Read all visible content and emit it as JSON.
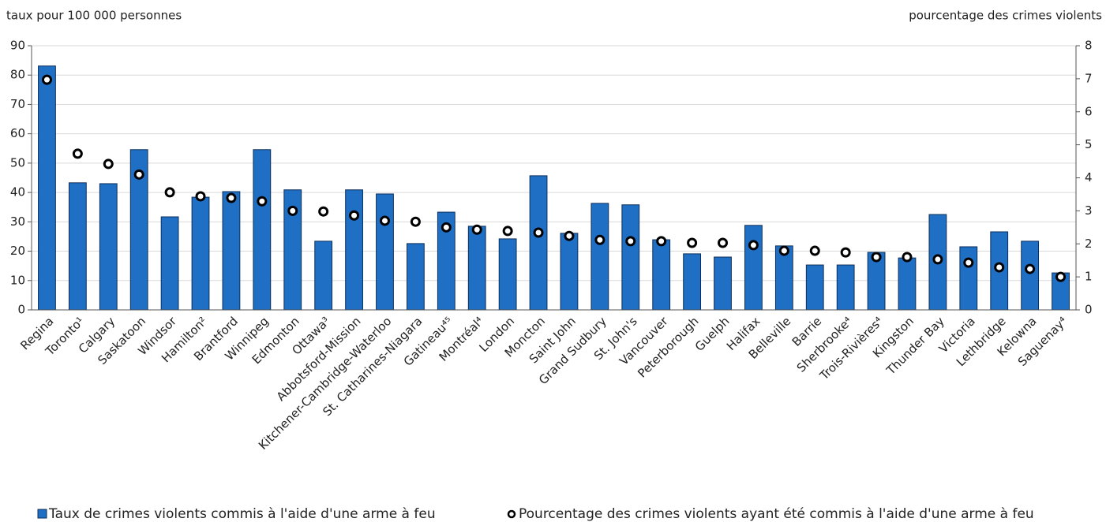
{
  "chart_data": {
    "type": "bar",
    "y_label": "taux pour 100 000 personnes",
    "y2_label": "pourcentage des crimes violents",
    "categories": [
      "Regina",
      "Toronto¹",
      "Calgary",
      "Saskatoon",
      "Windsor",
      "Hamilton²",
      "Brantford",
      "Winnipeg",
      "Edmonton",
      "Ottawa³",
      "Abbotsford-Mission",
      "Kitchener-Cambridge-Waterloo",
      "St. Catharines-Niagara",
      "Gatineau⁴⁵",
      "Montréal⁴",
      "London",
      "Moncton",
      "Saint John",
      "Grand Sudbury",
      "St. John's",
      "Vancouver",
      "Peterborough",
      "Guelph",
      "Halifax",
      "Belleville",
      "Barrie",
      "Sherbrooke⁴",
      "Trois-Rivières⁴",
      "Kingston",
      "Thunder Bay",
      "Victoria",
      "Lethbridge",
      "Kelowna",
      "Saguenay⁴"
    ],
    "series": [
      {
        "name": "Taux de crimes violents commis à l'aide d'une arme à feu",
        "type": "bar",
        "color": "#1f6fc5",
        "values": [
          83.1,
          43.3,
          43.0,
          54.6,
          31.7,
          38.4,
          40.3,
          54.6,
          40.9,
          23.4,
          40.9,
          39.5,
          22.6,
          33.3,
          28.5,
          24.2,
          45.7,
          26.1,
          36.3,
          35.8,
          23.9,
          19.1,
          18.0,
          28.8,
          21.8,
          15.3,
          15.3,
          19.6,
          17.7,
          32.5,
          21.5,
          26.6,
          23.4,
          12.6
        ]
      },
      {
        "name": "Pourcentage des crimes violents ayant été commis à l'aide d'une arme à feu",
        "type": "scatter",
        "axis": "y2",
        "color": "#000000",
        "values": [
          6.97,
          4.73,
          4.42,
          4.1,
          3.56,
          3.44,
          3.39,
          3.29,
          3.0,
          2.98,
          2.86,
          2.7,
          2.67,
          2.5,
          2.43,
          2.39,
          2.34,
          2.24,
          2.12,
          2.08,
          2.08,
          2.03,
          2.03,
          1.96,
          1.79,
          1.79,
          1.74,
          1.6,
          1.6,
          1.53,
          1.43,
          1.29,
          1.24,
          1.0
        ]
      }
    ],
    "ylim": [
      0,
      90
    ],
    "yticks": [
      0,
      10,
      20,
      30,
      40,
      50,
      60,
      70,
      80,
      90
    ],
    "y2lim": [
      0,
      8
    ],
    "y2ticks": [
      0,
      1,
      2,
      3,
      4,
      5,
      6,
      7,
      8
    ],
    "grid": true
  }
}
